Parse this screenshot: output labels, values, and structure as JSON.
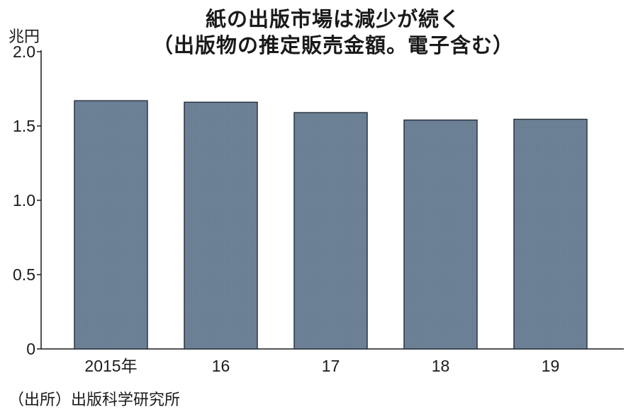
{
  "chart_data": {
    "type": "bar",
    "title": "紙の出版市場は減少が続く",
    "subtitle": "（出版物の推定販売金額。電子含む）",
    "ylabel": "兆円",
    "categories": [
      "2015年",
      "16",
      "17",
      "18",
      "19"
    ],
    "values": [
      1.67,
      1.66,
      1.59,
      1.54,
      1.545
    ],
    "ylim": [
      0,
      2.0
    ],
    "yticks": [
      0,
      0.5,
      1.0,
      1.5,
      2.0
    ],
    "ytick_labels": [
      "0",
      "0.5",
      "1.0",
      "1.5",
      "2.0"
    ],
    "bar_color": "#6e8297",
    "grid": false,
    "source": "（出所）出版科学研究所"
  }
}
